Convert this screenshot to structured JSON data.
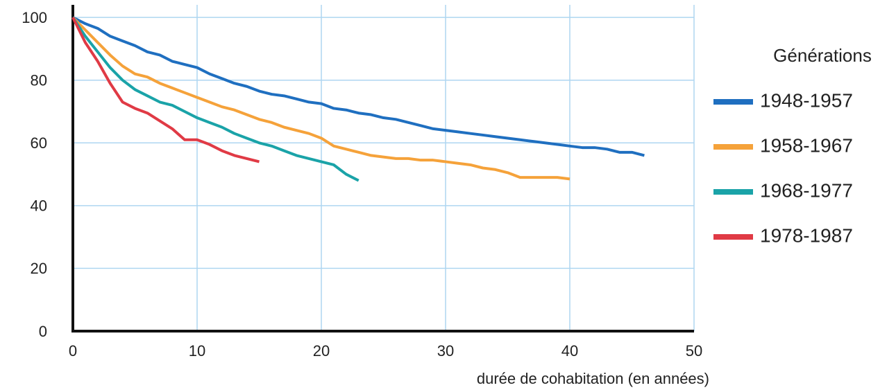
{
  "chart_data": {
    "type": "line",
    "x_label": "durée de cohabitation (en années)",
    "legend_title": "Générations",
    "legend": "right",
    "grid": true,
    "xlim": [
      0,
      50
    ],
    "xticks": [
      0,
      10,
      20,
      30,
      40,
      50
    ],
    "ylim": [
      0,
      104
    ],
    "yticks": [
      0,
      20,
      40,
      60,
      80,
      100
    ],
    "series": [
      {
        "name": "1948-1957",
        "color": "#1f6fc0",
        "x": [
          0,
          1,
          2,
          3,
          4,
          5,
          6,
          7,
          8,
          9,
          10,
          11,
          12,
          13,
          14,
          15,
          16,
          17,
          18,
          19,
          20,
          21,
          22,
          23,
          24,
          25,
          26,
          27,
          28,
          29,
          30,
          31,
          32,
          33,
          34,
          35,
          36,
          37,
          38,
          39,
          40,
          41,
          42,
          43,
          44,
          45,
          46
        ],
        "values": [
          100,
          98,
          96.5,
          94,
          92.5,
          91,
          89,
          88,
          86,
          85,
          84,
          82,
          80.5,
          79,
          78,
          76.5,
          75.5,
          75,
          74,
          73,
          72.5,
          71,
          70.5,
          69.5,
          69,
          68,
          67.5,
          66.5,
          65.5,
          64.5,
          64,
          63.5,
          63,
          62.5,
          62,
          61.5,
          61,
          60.5,
          60,
          59.5,
          59,
          58.5,
          58.5,
          58,
          57,
          57,
          56
        ]
      },
      {
        "name": "1958-1967",
        "color": "#f5a23a",
        "x": [
          0,
          1,
          2,
          3,
          4,
          5,
          6,
          7,
          8,
          9,
          10,
          11,
          12,
          13,
          14,
          15,
          16,
          17,
          18,
          19,
          20,
          21,
          22,
          23,
          24,
          25,
          26,
          27,
          28,
          29,
          30,
          31,
          32,
          33,
          34,
          35,
          36,
          37,
          38,
          39,
          40
        ],
        "values": [
          100,
          96,
          92,
          88,
          84.5,
          82,
          81,
          79,
          77.5,
          76,
          74.5,
          73,
          71.5,
          70.5,
          69,
          67.5,
          66.5,
          65,
          64,
          63,
          61.5,
          59,
          58,
          57,
          56,
          55.5,
          55,
          55,
          54.5,
          54.5,
          54,
          53.5,
          53,
          52,
          51.5,
          50.5,
          49,
          49,
          49,
          49,
          48.5
        ]
      },
      {
        "name": "1968-1977",
        "color": "#1aa3a8",
        "x": [
          0,
          1,
          2,
          3,
          4,
          5,
          6,
          7,
          8,
          9,
          10,
          11,
          12,
          13,
          14,
          15,
          16,
          17,
          18,
          19,
          20,
          21,
          22,
          23
        ],
        "values": [
          100,
          94,
          89,
          84,
          80,
          77,
          75,
          73,
          72,
          70,
          68,
          66.5,
          65,
          63,
          61.5,
          60,
          59,
          57.5,
          56,
          55,
          54,
          53,
          50,
          48
        ]
      },
      {
        "name": "1978-1987",
        "color": "#e03a45",
        "x": [
          0,
          1,
          2,
          3,
          4,
          5,
          6,
          7,
          8,
          9,
          10,
          11,
          12,
          13,
          14,
          15
        ],
        "values": [
          100,
          92,
          86,
          79,
          73,
          71,
          69.5,
          67,
          64.5,
          61,
          61,
          59.5,
          57.5,
          56,
          55,
          54
        ]
      }
    ]
  }
}
